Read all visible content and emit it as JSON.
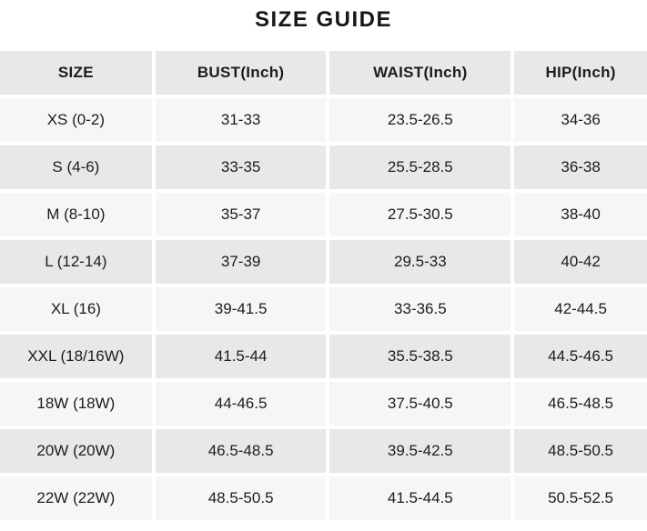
{
  "title": "SIZE GUIDE",
  "table": {
    "columns": [
      "SIZE",
      "BUST(Inch)",
      "WAIST(Inch)",
      "HIP(Inch)"
    ],
    "rows": [
      [
        "XS (0-2)",
        "31-33",
        "23.5-26.5",
        "34-36"
      ],
      [
        "S (4-6)",
        "33-35",
        "25.5-28.5",
        "36-38"
      ],
      [
        "M (8-10)",
        "35-37",
        "27.5-30.5",
        "38-40"
      ],
      [
        "L (12-14)",
        "37-39",
        "29.5-33",
        "40-42"
      ],
      [
        "XL (16)",
        "39-41.5",
        "33-36.5",
        "42-44.5"
      ],
      [
        "XXL (18/16W)",
        "41.5-44",
        "35.5-38.5",
        "44.5-46.5"
      ],
      [
        "18W (18W)",
        "44-46.5",
        "37.5-40.5",
        "46.5-48.5"
      ],
      [
        "20W (20W)",
        "46.5-48.5",
        "39.5-42.5",
        "48.5-50.5"
      ],
      [
        "22W (22W)",
        "48.5-50.5",
        "41.5-44.5",
        "50.5-52.5"
      ]
    ]
  },
  "colors": {
    "header_bg": "#e8e8e8",
    "row_alt_bg": "#e8e8e8",
    "row_bg": "#f6f6f6",
    "gap": "#ffffff",
    "text": "#1c1c1c"
  }
}
